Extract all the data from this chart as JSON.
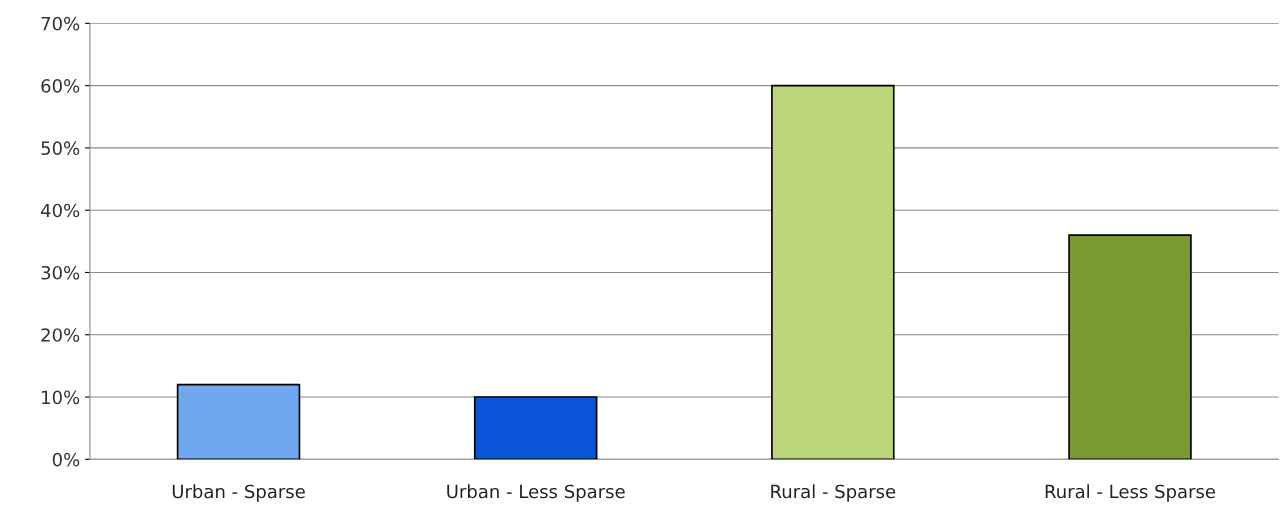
{
  "chart_data": {
    "type": "bar",
    "categories": [
      "Urban - Sparse",
      "Urban - Less Sparse",
      "Rural - Sparse",
      "Rural - Less Sparse"
    ],
    "values": [
      12,
      10,
      60,
      36
    ],
    "colors": [
      "#70a8f0",
      "#0a55d8",
      "#bcd67c",
      "#7c9a32"
    ],
    "ylim": [
      0,
      70
    ],
    "yticks": [
      {
        "value": 0,
        "label": "0%"
      },
      {
        "value": 10,
        "label": "10%"
      },
      {
        "value": 20,
        "label": "20%"
      },
      {
        "value": 30,
        "label": "30%"
      },
      {
        "value": 40,
        "label": "40%"
      },
      {
        "value": 50,
        "label": "50%"
      },
      {
        "value": 60,
        "label": "60%"
      },
      {
        "value": 70,
        "label": "70%"
      }
    ],
    "grid": "y",
    "legend": false
  }
}
